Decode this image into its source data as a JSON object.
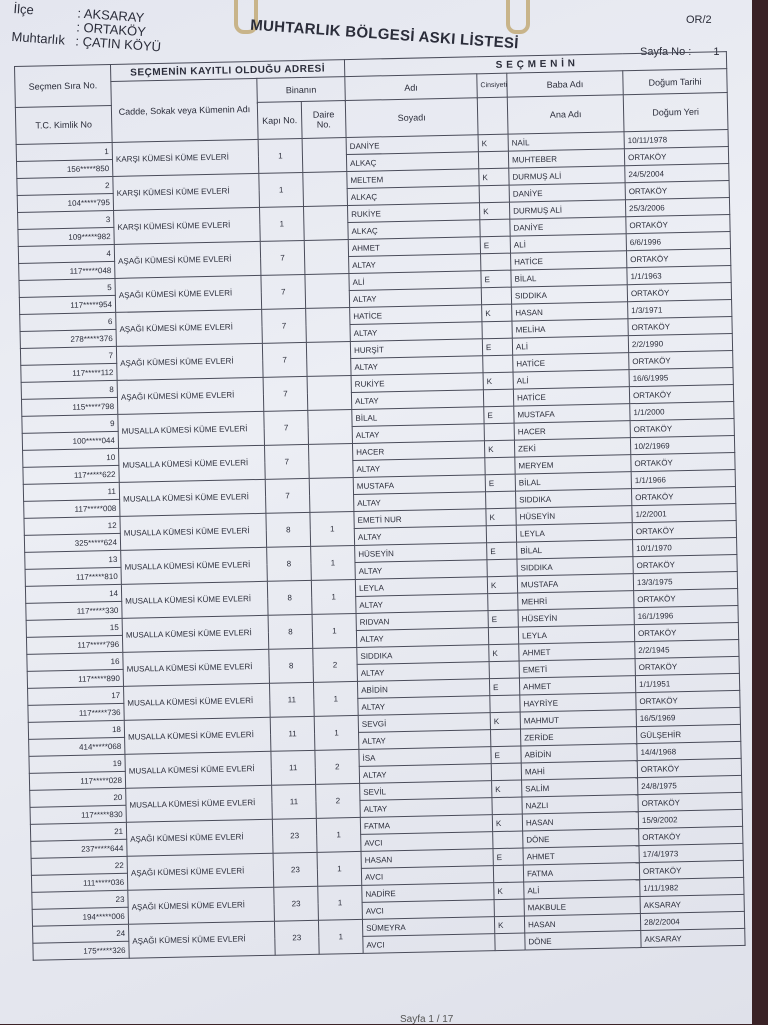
{
  "header": {
    "fields": [
      {
        "label": "İlçe",
        "value": ": AKSARAY"
      },
      {
        "label": "",
        "value": ": ORTAKÖY"
      },
      {
        "label": "Muhtarlık",
        "value": ": ÇATIN KÖYÜ"
      }
    ],
    "title": "MUHTARLIK BÖLGESİ ASKI LİSTESİ",
    "form_code": "OR/2",
    "page_label": "Sayfa No :",
    "page_no": "1"
  },
  "columns": {
    "sira": "Seçmen Sıra No.",
    "tc": "T.C. Kimlik No",
    "address_group": "SEÇMENİN KAYITLI OLDUĞU ADRESİ",
    "street": "Cadde, Sokak veya Kümenin Adı",
    "building": "Binanın",
    "door": "Kapı No.",
    "flat": "Daire No.",
    "voter_group": "S E Ç M E N İ N",
    "name": "Adı",
    "surname": "Soyadı",
    "gender": "Cinsiyeti",
    "father": "Baba Adı",
    "mother": "Ana Adı",
    "birth_date": "Doğum Tarihi",
    "birth_place": "Doğum Yeri"
  },
  "rows": [
    {
      "no": "1",
      "tc": "156*****850",
      "street": "KARŞI KÜMESİ KÜME EVLERİ",
      "door": "1",
      "flat": "",
      "name": "DANİYE",
      "surname": "ALKAÇ",
      "gender": "K",
      "father": "NAİL",
      "mother": "MUHTEBER",
      "date": "10/11/1978",
      "place": "ORTAKÖY"
    },
    {
      "no": "2",
      "tc": "104*****795",
      "street": "KARŞI KÜMESİ KÜME EVLERİ",
      "door": "1",
      "flat": "",
      "name": "MELTEM",
      "surname": "ALKAÇ",
      "gender": "K",
      "father": "DURMUŞ ALİ",
      "mother": "DANİYE",
      "date": "24/5/2004",
      "place": "ORTAKÖY"
    },
    {
      "no": "3",
      "tc": "109*****982",
      "street": "KARŞI KÜMESİ KÜME EVLERİ",
      "door": "1",
      "flat": "",
      "name": "RUKİYE",
      "surname": "ALKAÇ",
      "gender": "K",
      "father": "DURMUŞ ALİ",
      "mother": "DANİYE",
      "date": "25/3/2006",
      "place": "ORTAKÖY"
    },
    {
      "no": "4",
      "tc": "117*****048",
      "street": "AŞAĞI KÜMESİ KÜME EVLERİ",
      "door": "7",
      "flat": "",
      "name": "AHMET",
      "surname": "ALTAY",
      "gender": "E",
      "father": "ALİ",
      "mother": "HATİCE",
      "date": "6/6/1996",
      "place": "ORTAKÖY"
    },
    {
      "no": "5",
      "tc": "117*****954",
      "street": "AŞAĞI KÜMESİ KÜME EVLERİ",
      "door": "7",
      "flat": "",
      "name": "ALİ",
      "surname": "ALTAY",
      "gender": "E",
      "father": "BİLAL",
      "mother": "SIDDIKA",
      "date": "1/1/1963",
      "place": "ORTAKÖY"
    },
    {
      "no": "6",
      "tc": "278*****376",
      "street": "AŞAĞI KÜMESİ KÜME EVLERİ",
      "door": "7",
      "flat": "",
      "name": "HATİCE",
      "surname": "ALTAY",
      "gender": "K",
      "father": "HASAN",
      "mother": "MELİHA",
      "date": "1/3/1971",
      "place": "ORTAKÖY"
    },
    {
      "no": "7",
      "tc": "117*****112",
      "street": "AŞAĞI KÜMESİ KÜME EVLERİ",
      "door": "7",
      "flat": "",
      "name": "HURŞİT",
      "surname": "ALTAY",
      "gender": "E",
      "father": "ALİ",
      "mother": "HATİCE",
      "date": "2/2/1990",
      "place": "ORTAKÖY"
    },
    {
      "no": "8",
      "tc": "115*****798",
      "street": "AŞAĞI KÜMESİ KÜME EVLERİ",
      "door": "7",
      "flat": "",
      "name": "RUKİYE",
      "surname": "ALTAY",
      "gender": "K",
      "father": "ALİ",
      "mother": "HATİCE",
      "date": "16/6/1995",
      "place": "ORTAKÖY"
    },
    {
      "no": "9",
      "tc": "100*****044",
      "street": "MUSALLA KÜMESİ KÜME EVLERİ",
      "door": "7",
      "flat": "",
      "name": "BİLAL",
      "surname": "ALTAY",
      "gender": "E",
      "father": "MUSTAFA",
      "mother": "HACER",
      "date": "1/1/2000",
      "place": "ORTAKÖY"
    },
    {
      "no": "10",
      "tc": "117*****622",
      "street": "MUSALLA KÜMESİ KÜME EVLERİ",
      "door": "7",
      "flat": "",
      "name": "HACER",
      "surname": "ALTAY",
      "gender": "K",
      "father": "ZEKİ",
      "mother": "MERYEM",
      "date": "10/2/1969",
      "place": "ORTAKÖY"
    },
    {
      "no": "11",
      "tc": "117*****008",
      "street": "MUSALLA KÜMESİ KÜME EVLERİ",
      "door": "7",
      "flat": "",
      "name": "MUSTAFA",
      "surname": "ALTAY",
      "gender": "E",
      "father": "BİLAL",
      "mother": "SIDDIKA",
      "date": "1/1/1966",
      "place": "ORTAKÖY"
    },
    {
      "no": "12",
      "tc": "325*****624",
      "street": "MUSALLA KÜMESİ KÜME EVLERİ",
      "door": "8",
      "flat": "1",
      "name": "EMETİ NUR",
      "surname": "ALTAY",
      "gender": "K",
      "father": "HÜSEYİN",
      "mother": "LEYLA",
      "date": "1/2/2001",
      "place": "ORTAKÖY"
    },
    {
      "no": "13",
      "tc": "117*****810",
      "street": "MUSALLA KÜMESİ KÜME EVLERİ",
      "door": "8",
      "flat": "1",
      "name": "HÜSEYİN",
      "surname": "ALTAY",
      "gender": "E",
      "father": "BİLAL",
      "mother": "SIDDIKA",
      "date": "10/1/1970",
      "place": "ORTAKÖY"
    },
    {
      "no": "14",
      "tc": "117*****330",
      "street": "MUSALLA KÜMESİ KÜME EVLERİ",
      "door": "8",
      "flat": "1",
      "name": "LEYLA",
      "surname": "ALTAY",
      "gender": "K",
      "father": "MUSTAFA",
      "mother": "MEHRİ",
      "date": "13/3/1975",
      "place": "ORTAKÖY"
    },
    {
      "no": "15",
      "tc": "117*****796",
      "street": "MUSALLA KÜMESİ KÜME EVLERİ",
      "door": "8",
      "flat": "1",
      "name": "RIDVAN",
      "surname": "ALTAY",
      "gender": "E",
      "father": "HÜSEYİN",
      "mother": "LEYLA",
      "date": "16/1/1996",
      "place": "ORTAKÖY"
    },
    {
      "no": "16",
      "tc": "117*****890",
      "street": "MUSALLA KÜMESİ KÜME EVLERİ",
      "door": "8",
      "flat": "2",
      "name": "SIDDIKA",
      "surname": "ALTAY",
      "gender": "K",
      "father": "AHMET",
      "mother": "EMETİ",
      "date": "2/2/1945",
      "place": "ORTAKÖY"
    },
    {
      "no": "17",
      "tc": "117*****736",
      "street": "MUSALLA KÜMESİ KÜME EVLERİ",
      "door": "11",
      "flat": "1",
      "name": "ABİDİN",
      "surname": "ALTAY",
      "gender": "E",
      "father": "AHMET",
      "mother": "HAYRİYE",
      "date": "1/1/1951",
      "place": "ORTAKÖY"
    },
    {
      "no": "18",
      "tc": "414*****068",
      "street": "MUSALLA KÜMESİ KÜME EVLERİ",
      "door": "11",
      "flat": "1",
      "name": "SEVGİ",
      "surname": "ALTAY",
      "gender": "K",
      "father": "MAHMUT",
      "mother": "ZERİDE",
      "date": "16/5/1969",
      "place": "GÜLŞEHİR"
    },
    {
      "no": "19",
      "tc": "117*****028",
      "street": "MUSALLA KÜMESİ KÜME EVLERİ",
      "door": "11",
      "flat": "2",
      "name": "İSA",
      "surname": "ALTAY",
      "gender": "E",
      "father": "ABİDİN",
      "mother": "MAHİ",
      "date": "14/4/1968",
      "place": "ORTAKÖY"
    },
    {
      "no": "20",
      "tc": "117*****830",
      "street": "MUSALLA KÜMESİ KÜME EVLERİ",
      "door": "11",
      "flat": "2",
      "name": "SEVİL",
      "surname": "ALTAY",
      "gender": "K",
      "father": "SALİM",
      "mother": "NAZLI",
      "date": "24/8/1975",
      "place": "ORTAKÖY"
    },
    {
      "no": "21",
      "tc": "237*****644",
      "street": "AŞAĞI KÜMESİ KÜME EVLERİ",
      "door": "23",
      "flat": "1",
      "name": "FATMA",
      "surname": "AVCI",
      "gender": "K",
      "father": "HASAN",
      "mother": "DÖNE",
      "date": "15/9/2002",
      "place": "ORTAKÖY"
    },
    {
      "no": "22",
      "tc": "111*****036",
      "street": "AŞAĞI KÜMESİ KÜME EVLERİ",
      "door": "23",
      "flat": "1",
      "name": "HASAN",
      "surname": "AVCI",
      "gender": "E",
      "father": "AHMET",
      "mother": "FATMA",
      "date": "17/4/1973",
      "place": "ORTAKÖY"
    },
    {
      "no": "23",
      "tc": "194*****006",
      "street": "AŞAĞI KÜMESİ KÜME EVLERİ",
      "door": "23",
      "flat": "1",
      "name": "NADİRE",
      "surname": "AVCI",
      "gender": "K",
      "father": "ALİ",
      "mother": "MAKBULE",
      "date": "1/11/1982",
      "place": "AKSARAY"
    },
    {
      "no": "24",
      "tc": "175*****326",
      "street": "AŞAĞI KÜMESİ KÜME EVLERİ",
      "door": "23",
      "flat": "1",
      "name": "SÜMEYRA",
      "surname": "AVCI",
      "gender": "K",
      "father": "HASAN",
      "mother": "DÖNE",
      "date": "28/2/2004",
      "place": "AKSARAY"
    }
  ],
  "footer": "Sayfa 1 / 17"
}
